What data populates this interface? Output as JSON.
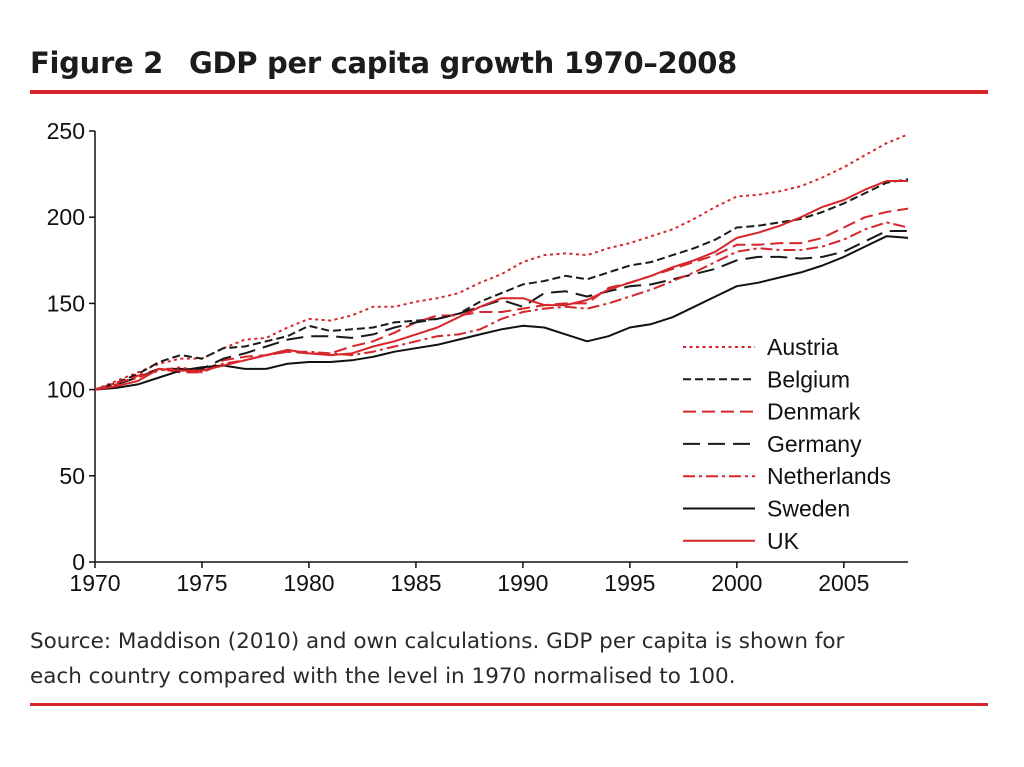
{
  "figure": {
    "number": "Figure 2",
    "title": "GDP per capita growth 1970–2008",
    "caption_line1": "Source: Maddison (2010) and own calculations. GDP per capita is shown for",
    "caption_line2": "each country compared with the level in 1970 normalised to 100."
  },
  "chart_data": {
    "type": "line",
    "title": "GDP per capita growth 1970–2008",
    "xlabel": "",
    "ylabel": "",
    "xlim": [
      1970,
      2008
    ],
    "ylim": [
      0,
      250
    ],
    "x_ticks": [
      1970,
      1975,
      1980,
      1985,
      1990,
      1995,
      2000,
      2005
    ],
    "y_ticks": [
      0,
      50,
      100,
      150,
      200,
      250
    ],
    "grid": false,
    "legend_position": "bottom-right",
    "x": [
      1970,
      1971,
      1972,
      1973,
      1974,
      1975,
      1976,
      1977,
      1978,
      1979,
      1980,
      1981,
      1982,
      1983,
      1984,
      1985,
      1986,
      1987,
      1988,
      1989,
      1990,
      1991,
      1992,
      1993,
      1994,
      1995,
      1996,
      1997,
      1998,
      1999,
      2000,
      2001,
      2002,
      2003,
      2004,
      2005,
      2006,
      2007,
      2008
    ],
    "series": [
      {
        "name": "Austria",
        "color": "#d7262b",
        "dash": "dotted",
        "values": [
          100,
          105,
          110,
          115,
          118,
          118,
          124,
          129,
          130,
          136,
          141,
          140,
          143,
          148,
          148,
          151,
          153,
          156,
          162,
          167,
          174,
          178,
          179,
          178,
          182,
          185,
          189,
          193,
          199,
          206,
          212,
          213,
          215,
          218,
          223,
          229,
          236,
          243,
          248
        ]
      },
      {
        "name": "Belgium",
        "color": "#1a1a1a",
        "dash": "short-dash",
        "values": [
          100,
          104,
          109,
          116,
          120,
          118,
          124,
          125,
          128,
          131,
          137,
          134,
          135,
          136,
          139,
          140,
          141,
          144,
          151,
          156,
          161,
          163,
          166,
          164,
          168,
          172,
          174,
          178,
          182,
          187,
          194,
          195,
          197,
          199,
          203,
          208,
          214,
          220,
          222
        ]
      },
      {
        "name": "Denmark",
        "color": "#d7262b",
        "dash": "dash",
        "values": [
          100,
          103,
          108,
          112,
          110,
          110,
          117,
          119,
          120,
          122,
          121,
          121,
          125,
          128,
          133,
          139,
          143,
          143,
          145,
          145,
          147,
          149,
          150,
          150,
          159,
          162,
          166,
          170,
          174,
          178,
          184,
          184,
          185,
          185,
          188,
          194,
          200,
          203,
          205
        ]
      },
      {
        "name": "Germany",
        "color": "#1a1a1a",
        "dash": "long-dash",
        "values": [
          100,
          103,
          107,
          112,
          112,
          112,
          118,
          121,
          125,
          129,
          131,
          131,
          130,
          132,
          136,
          139,
          141,
          144,
          148,
          152,
          148,
          156,
          157,
          154,
          157,
          160,
          161,
          164,
          167,
          170,
          175,
          177,
          177,
          176,
          177,
          180,
          186,
          192,
          192
        ]
      },
      {
        "name": "Netherlands",
        "color": "#d7262b",
        "dash": "dash-dot",
        "values": [
          100,
          104,
          107,
          111,
          113,
          110,
          115,
          117,
          120,
          122,
          122,
          121,
          120,
          122,
          125,
          128,
          131,
          132,
          135,
          141,
          145,
          147,
          148,
          147,
          150,
          154,
          158,
          163,
          168,
          174,
          180,
          182,
          181,
          181,
          183,
          187,
          193,
          197,
          194
        ]
      },
      {
        "name": "Sweden",
        "color": "#111111",
        "dash": "solid",
        "values": [
          100,
          101,
          103,
          107,
          111,
          113,
          114,
          112,
          112,
          115,
          116,
          116,
          117,
          119,
          122,
          124,
          126,
          129,
          132,
          135,
          137,
          136,
          132,
          128,
          131,
          136,
          138,
          142,
          148,
          154,
          160,
          162,
          165,
          168,
          172,
          177,
          183,
          189,
          188
        ]
      },
      {
        "name": "UK",
        "color": "#d7262b",
        "dash": "solid",
        "values": [
          100,
          102,
          105,
          112,
          111,
          111,
          114,
          117,
          120,
          123,
          121,
          120,
          121,
          125,
          128,
          132,
          136,
          142,
          148,
          153,
          153,
          149,
          149,
          152,
          158,
          162,
          166,
          171,
          175,
          180,
          188,
          191,
          195,
          200,
          206,
          210,
          216,
          221,
          221
        ]
      }
    ]
  }
}
